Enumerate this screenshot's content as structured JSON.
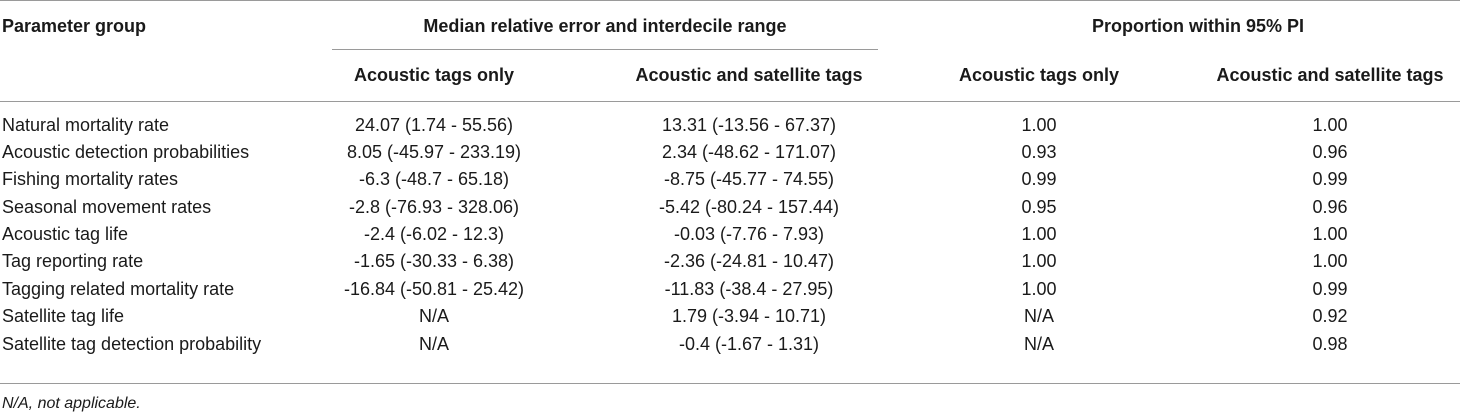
{
  "table": {
    "headers": {
      "param_group": "Parameter group",
      "median_group": "Median relative error and interdecile range",
      "prop_group": "Proportion within 95% PI",
      "subheaders": [
        "Acoustic tags only",
        "Acoustic and satellite tags",
        "Acoustic tags only",
        "Acoustic and satellite tags"
      ]
    },
    "rows": [
      [
        "Natural mortality rate",
        "24.07 (1.74 - 55.56)",
        "13.31 (-13.56 - 67.37)",
        "1.00",
        "1.00"
      ],
      [
        "Acoustic detection probabilities",
        "8.05 (-45.97 - 233.19)",
        "2.34 (-48.62 - 171.07)",
        "0.93",
        "0.96"
      ],
      [
        "Fishing mortality rates",
        "-6.3 (-48.7 - 65.18)",
        "-8.75 (-45.77 - 74.55)",
        "0.99",
        "0.99"
      ],
      [
        "Seasonal movement rates",
        "-2.8 (-76.93 - 328.06)",
        "-5.42 (-80.24 - 157.44)",
        "0.95",
        "0.96"
      ],
      [
        "Acoustic tag life",
        "-2.4 (-6.02 - 12.3)",
        "-0.03 (-7.76 - 7.93)",
        "1.00",
        "1.00"
      ],
      [
        "Tag reporting rate",
        "-1.65 (-30.33 - 6.38)",
        "-2.36 (-24.81 - 10.47)",
        "1.00",
        "1.00"
      ],
      [
        "Tagging related mortality rate",
        "-16.84 (-50.81 - 25.42)",
        "-11.83 (-38.4 - 27.95)",
        "1.00",
        "0.99"
      ],
      [
        "Satellite tag life",
        "N/A",
        "1.79 (-3.94 - 10.71)",
        "N/A",
        "0.92"
      ],
      [
        "Satellite tag detection probability",
        "N/A",
        "-0.4 (-1.67 - 1.31)",
        "N/A",
        "0.98"
      ]
    ]
  },
  "footnote": "N/A, not applicable."
}
